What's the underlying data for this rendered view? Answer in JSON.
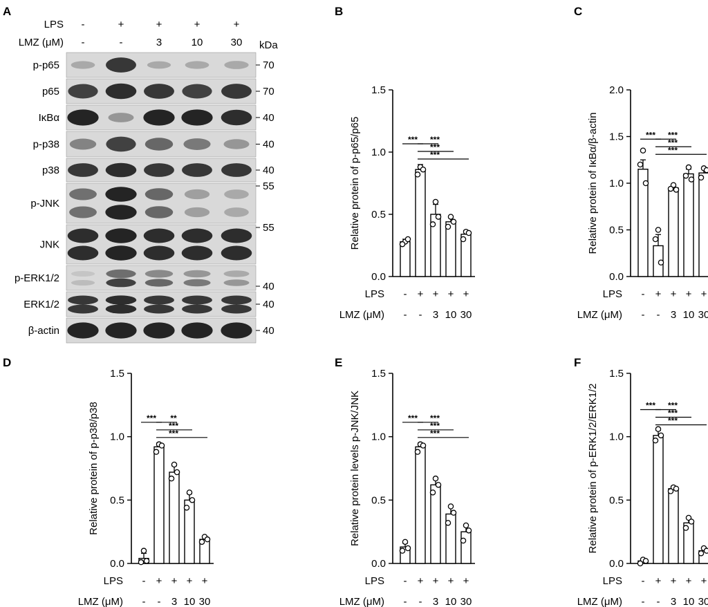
{
  "blot": {
    "label": "A",
    "kda_label": "kDa",
    "conditions": [
      {
        "name": "LPS",
        "values": [
          "-",
          "+",
          "+",
          "+",
          "+"
        ]
      },
      {
        "name": "LMZ (μM)",
        "values": [
          "-",
          "-",
          "3",
          "10",
          "30"
        ]
      }
    ],
    "rows": [
      {
        "name": "p-p65",
        "markers": [
          "70"
        ],
        "intensity": [
          0.18,
          0.85,
          0.15,
          0.18,
          0.22
        ]
      },
      {
        "name": "p65",
        "markers": [
          "70"
        ],
        "intensity": [
          0.8,
          0.9,
          0.85,
          0.8,
          0.85
        ]
      },
      {
        "name": "IκBα",
        "markers": [
          "40"
        ],
        "intensity": [
          0.95,
          0.35,
          0.95,
          0.95,
          0.9
        ]
      },
      {
        "name": "p-p38",
        "markers": [
          "40"
        ],
        "intensity": [
          0.45,
          0.8,
          0.6,
          0.5,
          0.35
        ]
      },
      {
        "name": "p38",
        "markers": [
          "40"
        ],
        "intensity": [
          0.85,
          0.9,
          0.85,
          0.85,
          0.85
        ]
      },
      {
        "name": "p-JNK",
        "markers": [
          "55"
        ],
        "intensity": [
          0.55,
          0.95,
          0.6,
          0.3,
          0.25
        ]
      },
      {
        "name": "JNK",
        "markers": [
          "55"
        ],
        "intensity": [
          0.9,
          0.95,
          0.9,
          0.9,
          0.9
        ]
      },
      {
        "name": "p-ERK1/2",
        "markers": [
          "40"
        ],
        "intensity": [
          0.15,
          0.8,
          0.6,
          0.5,
          0.35
        ]
      },
      {
        "name": "ERK1/2",
        "markers": [
          "40"
        ],
        "intensity": [
          0.85,
          0.9,
          0.85,
          0.85,
          0.85
        ]
      },
      {
        "name": "β-actin",
        "markers": [
          "40"
        ],
        "intensity": [
          0.95,
          0.95,
          0.95,
          0.95,
          0.95
        ]
      }
    ]
  },
  "colors": {
    "bar_fill": "#ffffff",
    "stroke": "#000000",
    "band": "#1a1a1a",
    "blot_bg": "#d9d9d9"
  },
  "chart_data": [
    {
      "label": "B",
      "type": "bar",
      "ylabel": "Relative protein of p-p65/p65",
      "ylim": [
        0,
        1.5
      ],
      "yticks": [
        "0.0",
        "0.5",
        "1.0",
        "1.5"
      ],
      "conditions": [
        {
          "name": "LPS",
          "values": [
            "-",
            "+",
            "+",
            "+",
            "+"
          ]
        },
        {
          "name": "LMZ (μM)",
          "values": [
            "-",
            "-",
            "3",
            "10",
            "30"
          ]
        }
      ],
      "values": [
        0.28,
        0.86,
        0.5,
        0.44,
        0.34
      ],
      "errors": [
        0.02,
        0.04,
        0.08,
        0.04,
        0.03
      ],
      "points": [
        [
          0.28,
          0.26,
          0.3
        ],
        [
          0.88,
          0.82,
          0.86
        ],
        [
          0.6,
          0.42,
          0.48
        ],
        [
          0.48,
          0.4,
          0.44
        ],
        [
          0.36,
          0.3,
          0.35
        ]
      ],
      "significance": [
        {
          "from": 0,
          "to": 1,
          "text": "***"
        },
        {
          "from": 1,
          "to": 2,
          "text": "***"
        },
        {
          "from": 1,
          "to": 3,
          "text": "***"
        },
        {
          "from": 1,
          "to": 4,
          "text": "***"
        }
      ]
    },
    {
      "label": "C",
      "type": "bar",
      "ylabel": "Relative protein of IκBα/β-actin",
      "ylim": [
        0,
        2.0
      ],
      "yticks": [
        "0.0",
        "0.5",
        "1.0",
        "1.5",
        "2.0"
      ],
      "conditions": [
        {
          "name": "LPS",
          "values": [
            "-",
            "+",
            "+",
            "+",
            "+"
          ]
        },
        {
          "name": "LMZ (μM)",
          "values": [
            "-",
            "-",
            "3",
            "10",
            "30"
          ]
        }
      ],
      "values": [
        1.15,
        0.33,
        0.95,
        1.1,
        1.11
      ],
      "errors": [
        0.1,
        0.12,
        0.03,
        0.05,
        0.05
      ],
      "points": [
        [
          1.35,
          1.2,
          1.0
        ],
        [
          0.5,
          0.4,
          0.15
        ],
        [
          0.98,
          0.94,
          0.93
        ],
        [
          1.17,
          1.08,
          1.04
        ],
        [
          1.16,
          1.06,
          1.14
        ]
      ],
      "significance": [
        {
          "from": 0,
          "to": 1,
          "text": "***"
        },
        {
          "from": 1,
          "to": 2,
          "text": "***"
        },
        {
          "from": 1,
          "to": 3,
          "text": "***"
        },
        {
          "from": 1,
          "to": 4,
          "text": "***"
        }
      ]
    },
    {
      "label": "D",
      "type": "bar",
      "ylabel": "Relative protein of p-p38/p38",
      "ylim": [
        0,
        1.5
      ],
      "yticks": [
        "0.0",
        "0.5",
        "1.0",
        "1.5"
      ],
      "conditions": [
        {
          "name": "LPS",
          "values": [
            "-",
            "+",
            "+",
            "+",
            "+"
          ]
        },
        {
          "name": "LMZ (μM)",
          "values": [
            "-",
            "-",
            "3",
            "10",
            "30"
          ]
        }
      ],
      "values": [
        0.04,
        0.92,
        0.72,
        0.5,
        0.19
      ],
      "errors": [
        0.04,
        0.03,
        0.05,
        0.05,
        0.02
      ],
      "points": [
        [
          0.1,
          0.01,
          0.02
        ],
        [
          0.94,
          0.88,
          0.93
        ],
        [
          0.78,
          0.67,
          0.72
        ],
        [
          0.56,
          0.44,
          0.5
        ],
        [
          0.21,
          0.17,
          0.19
        ]
      ],
      "significance": [
        {
          "from": 0,
          "to": 1,
          "text": "***"
        },
        {
          "from": 1,
          "to": 2,
          "text": "**"
        },
        {
          "from": 1,
          "to": 3,
          "text": "***"
        },
        {
          "from": 1,
          "to": 4,
          "text": "***"
        }
      ]
    },
    {
      "label": "E",
      "type": "bar",
      "ylabel": "Relative protein levels p-JNK/JNK",
      "ylim": [
        0,
        1.5
      ],
      "yticks": [
        "0.0",
        "0.5",
        "1.0",
        "1.5"
      ],
      "conditions": [
        {
          "name": "LPS",
          "values": [
            "-",
            "+",
            "+",
            "+",
            "+"
          ]
        },
        {
          "name": "LMZ (μM)",
          "values": [
            "-",
            "-",
            "3",
            "10",
            "30"
          ]
        }
      ],
      "values": [
        0.13,
        0.92,
        0.62,
        0.39,
        0.25
      ],
      "errors": [
        0.03,
        0.03,
        0.05,
        0.06,
        0.05
      ],
      "points": [
        [
          0.17,
          0.1,
          0.12
        ],
        [
          0.94,
          0.88,
          0.93
        ],
        [
          0.67,
          0.56,
          0.62
        ],
        [
          0.45,
          0.32,
          0.4
        ],
        [
          0.3,
          0.18,
          0.26
        ]
      ],
      "significance": [
        {
          "from": 0,
          "to": 1,
          "text": "***"
        },
        {
          "from": 1,
          "to": 2,
          "text": "***"
        },
        {
          "from": 1,
          "to": 3,
          "text": "***"
        },
        {
          "from": 1,
          "to": 4,
          "text": "***"
        }
      ]
    },
    {
      "label": "F",
      "type": "bar",
      "ylabel": "Relative protein of p-ERK1/2/ERK1/2",
      "ylim": [
        0,
        1.5
      ],
      "yticks": [
        "0.0",
        "0.5",
        "1.0",
        "1.5"
      ],
      "conditions": [
        {
          "name": "LPS",
          "values": [
            "-",
            "+",
            "+",
            "+",
            "+"
          ]
        },
        {
          "name": "LMZ (μM)",
          "values": [
            "-",
            "-",
            "3",
            "10",
            "30"
          ]
        }
      ],
      "values": [
        0.02,
        1.01,
        0.59,
        0.32,
        0.1
      ],
      "errors": [
        0.01,
        0.04,
        0.02,
        0.04,
        0.02
      ],
      "points": [
        [
          0.03,
          0.0,
          0.02
        ],
        [
          1.06,
          0.97,
          1.01
        ],
        [
          0.6,
          0.57,
          0.59
        ],
        [
          0.36,
          0.28,
          0.33
        ],
        [
          0.12,
          0.08,
          0.1
        ]
      ],
      "significance": [
        {
          "from": 0,
          "to": 1,
          "text": "***"
        },
        {
          "from": 1,
          "to": 2,
          "text": "***"
        },
        {
          "from": 1,
          "to": 3,
          "text": "***"
        },
        {
          "from": 1,
          "to": 4,
          "text": "***"
        }
      ]
    }
  ]
}
